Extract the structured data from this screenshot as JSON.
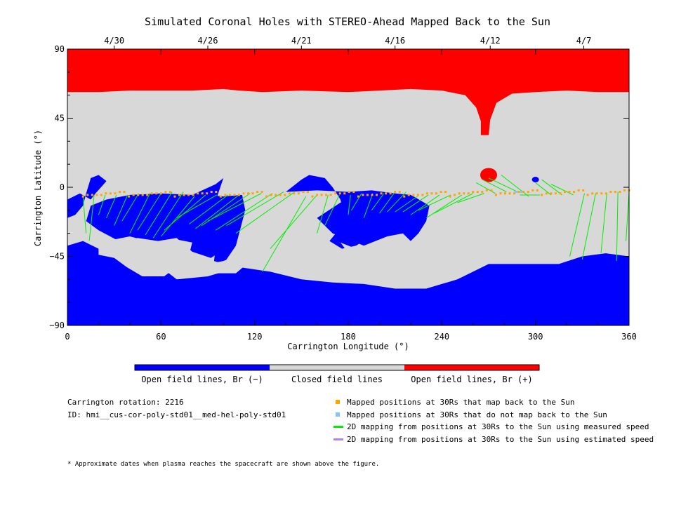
{
  "chart_data": {
    "type": "map",
    "title": "Simulated Coronal Holes with STEREO-Ahead Mapped Back to the Sun",
    "xlabel": "Carrington Longitude (°)",
    "ylabel": "Carrington Latitude (°)",
    "xlim": [
      0,
      360
    ],
    "ylim": [
      -90,
      90
    ],
    "x_ticks": [
      0,
      60,
      120,
      180,
      240,
      300,
      360
    ],
    "y_ticks": [
      -90,
      -45,
      0,
      45,
      90
    ],
    "y_tick_labels": [
      "−90",
      "−45",
      "0",
      "45",
      "90"
    ],
    "top_axis_dates": [
      {
        "label": "4/30",
        "lon": 30
      },
      {
        "label": "4/26",
        "lon": 90
      },
      {
        "label": "4/21",
        "lon": 150
      },
      {
        "label": "4/16",
        "lon": 210
      },
      {
        "label": "4/12",
        "lon": 271
      },
      {
        "label": "4/7",
        "lon": 331
      }
    ],
    "colors": {
      "open_negative": "#0000ff",
      "closed": "#d8d8d8",
      "open_positive": "#ff0000",
      "mapped": "#ffa500",
      "not_mapped": "#87c3f5",
      "measured_line": "#00ee00",
      "estimated_line": "#b97ff0"
    },
    "north_polar_hole_boundary": [
      [
        0,
        62
      ],
      [
        20,
        62
      ],
      [
        40,
        63
      ],
      [
        60,
        63
      ],
      [
        80,
        63
      ],
      [
        100,
        64
      ],
      [
        110,
        63
      ],
      [
        125,
        62
      ],
      [
        150,
        63
      ],
      [
        180,
        62
      ],
      [
        200,
        63
      ],
      [
        220,
        64
      ],
      [
        240,
        63
      ],
      [
        255,
        60
      ],
      [
        262,
        52
      ],
      [
        265,
        43
      ],
      [
        265,
        34
      ],
      [
        270,
        34
      ],
      [
        271,
        44
      ],
      [
        275,
        55
      ],
      [
        285,
        61
      ],
      [
        300,
        62
      ],
      [
        320,
        63
      ],
      [
        340,
        62
      ],
      [
        360,
        62
      ]
    ],
    "south_polar_hole_boundary": [
      [
        0,
        -38
      ],
      [
        10,
        -35
      ],
      [
        20,
        -40
      ],
      [
        40,
        -46
      ],
      [
        60,
        -52
      ],
      [
        70,
        -60
      ],
      [
        90,
        -58
      ],
      [
        110,
        -52
      ],
      [
        130,
        -55
      ],
      [
        150,
        -60
      ],
      [
        170,
        -62
      ],
      [
        190,
        -63
      ],
      [
        210,
        -66
      ],
      [
        230,
        -66
      ],
      [
        250,
        -60
      ],
      [
        270,
        -50
      ],
      [
        290,
        -50
      ],
      [
        300,
        -50
      ],
      [
        315,
        -50
      ],
      [
        330,
        -45
      ],
      [
        345,
        -43
      ],
      [
        360,
        -45
      ]
    ],
    "positive_patch_center": [
      270,
      8
    ],
    "mapped_points_lat": [
      -6,
      -5,
      -5,
      -5,
      -5,
      -4,
      -4,
      -4,
      -3,
      -3
    ],
    "mapped_lon_range": [
      10,
      360
    ],
    "not_mapped_points_lon": [
      287,
      288,
      291
    ],
    "field_line_targets": [
      [
        12,
        -30
      ],
      [
        14,
        -35
      ],
      [
        20,
        -18
      ],
      [
        25,
        -20
      ],
      [
        30,
        -25
      ],
      [
        35,
        -22
      ],
      [
        40,
        -30
      ],
      [
        45,
        -28
      ],
      [
        50,
        -31
      ],
      [
        55,
        -33
      ],
      [
        60,
        -32
      ],
      [
        62,
        -28
      ],
      [
        70,
        -20
      ],
      [
        78,
        -24
      ],
      [
        82,
        -27
      ],
      [
        86,
        -25
      ],
      [
        90,
        -22
      ],
      [
        95,
        -28
      ],
      [
        102,
        -25
      ],
      [
        108,
        -30
      ],
      [
        125,
        -55
      ],
      [
        130,
        -40
      ],
      [
        160,
        -30
      ],
      [
        165,
        -25
      ],
      [
        180,
        -18
      ],
      [
        182,
        -15
      ],
      [
        190,
        -20
      ],
      [
        195,
        -15
      ],
      [
        200,
        -17
      ],
      [
        205,
        -16
      ],
      [
        210,
        -16
      ],
      [
        215,
        -16
      ],
      [
        220,
        -18
      ],
      [
        225,
        -15
      ],
      [
        230,
        -20
      ],
      [
        235,
        -17
      ],
      [
        250,
        -10
      ],
      [
        262,
        3
      ],
      [
        266,
        5
      ],
      [
        270,
        6
      ],
      [
        278,
        8
      ],
      [
        290,
        -5
      ],
      [
        300,
        3
      ],
      [
        304,
        5
      ],
      [
        310,
        2
      ],
      [
        322,
        -45
      ],
      [
        330,
        -47
      ],
      [
        342,
        -43
      ],
      [
        352,
        -48
      ],
      [
        358,
        -35
      ]
    ],
    "footer_rotation_label": "Carrington rotation:",
    "footer_rotation_value": "2216",
    "footer_id_label": "ID:",
    "footer_id_value": "hmi__cus-cor-poly-std01__med-hel-poly-std01",
    "legend": {
      "colorbar_labels": [
        "Open field lines, Br (−)",
        "Closed field lines",
        "Open field lines, Br (+)"
      ],
      "mapped": "Mapped positions at 30Rs that map back to the Sun",
      "not_mapped": "Mapped positions at 30Rs that do not map back to the Sun",
      "measured": "2D mapping from positions at 30Rs to the Sun using measured speed",
      "estimated": "2D mapping from positions at 30Rs to the Sun using estimated speed"
    },
    "footnote": "* Approximate dates when plasma reaches the spacecraft are shown above the figure."
  }
}
